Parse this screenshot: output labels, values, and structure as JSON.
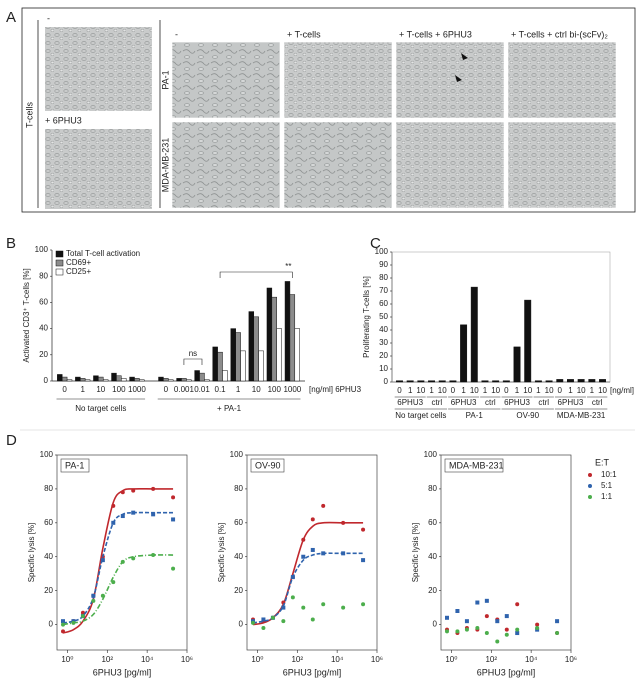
{
  "panel_letters": [
    "A",
    "B",
    "C",
    "D"
  ],
  "panel_a": {
    "row_group": "T-cells",
    "left_top": "-",
    "left_bottom": "+ 6PHU3",
    "columns": [
      "-",
      "+ T-cells",
      "+ T-cells + 6PHU3",
      "+ T-cells + ctrl bi-(scFv)₂"
    ],
    "rows": [
      "PA-1",
      "MDA-MB-231"
    ]
  },
  "chart_data": [
    {
      "type": "bar",
      "y_label": "Activated CD3⁺ T-cells [%]",
      "unit_label": "[ng/ml] 6PHU3",
      "categories": [
        "0",
        "1",
        "10",
        "100",
        "1000",
        "0",
        "0.001",
        "0.01",
        "0.1",
        "1",
        "10",
        "100",
        "1000"
      ],
      "groups": [
        {
          "name": "No target cells"
        },
        {
          "name": "+ PA-1"
        }
      ],
      "series": [
        {
          "name": "Total T-cell activation",
          "color": "#111111",
          "values": [
            5,
            3,
            4,
            6,
            3,
            3,
            2,
            8,
            26,
            40,
            53,
            71,
            76
          ]
        },
        {
          "name": "CD69+",
          "color": "#8c8c8c",
          "values": [
            3,
            2,
            3,
            4,
            2,
            2,
            2,
            6,
            22,
            37,
            49,
            64,
            66
          ]
        },
        {
          "name": "CD25+",
          "color": "#ffffff",
          "values": [
            1,
            1,
            1,
            2,
            1,
            1,
            1,
            1,
            8,
            23,
            23,
            40,
            40
          ]
        }
      ],
      "annotations": [
        "ns",
        "**"
      ],
      "ylim": [
        0,
        100
      ],
      "yticks": [
        0,
        20,
        40,
        60,
        80,
        100
      ],
      "legend": "top-left"
    },
    {
      "type": "bar",
      "y_label": "Proliferating T-cells [%]",
      "unit_label": "[ng/ml]",
      "color": "#111111",
      "categories": [
        "0",
        "1",
        "10",
        "1",
        "10",
        "0",
        "1",
        "10",
        "1",
        "10",
        "0",
        "1",
        "10",
        "1",
        "10",
        "0",
        "1",
        "10",
        "1",
        "10"
      ],
      "values": [
        1,
        1,
        1,
        1,
        1,
        1,
        44,
        73,
        1,
        1,
        1,
        27,
        63,
        1,
        1,
        2,
        2,
        2,
        2,
        2
      ],
      "groups": [
        {
          "name": "No target cells",
          "treatments": [
            "6PHU3",
            "ctrl"
          ]
        },
        {
          "name": "PA-1",
          "treatments": [
            "6PHU3",
            "ctrl"
          ]
        },
        {
          "name": "OV-90",
          "treatments": [
            "6PHU3",
            "ctrl"
          ]
        },
        {
          "name": "MDA-MB-231",
          "treatments": [
            "6PHU3",
            "ctrl"
          ]
        }
      ],
      "ylim": [
        0,
        100
      ],
      "yticks": [
        0,
        10,
        20,
        30,
        40,
        50,
        60,
        70,
        80,
        90,
        100
      ]
    },
    {
      "type": "scatter",
      "title": "PA-1",
      "x_label": "6PHU3 [pg/ml]",
      "y_label": "Specific lysis [%]",
      "log_x": true,
      "x": [
        0.6,
        2,
        6,
        20,
        60,
        200,
        600,
        2000,
        20000,
        200000
      ],
      "series": [
        {
          "color": "#c0282d",
          "marker": "circle",
          "line_style": "solid",
          "values": [
            -4,
            2,
            7,
            17,
            40,
            70,
            78,
            79,
            80,
            75
          ],
          "fit": [
            -5,
            -3,
            2,
            15,
            45,
            72,
            79,
            80,
            80,
            80
          ]
        },
        {
          "color": "#2f63ad",
          "marker": "square",
          "line_style": "dashed",
          "values": [
            2,
            2,
            5,
            17,
            38,
            60,
            64,
            66,
            65,
            62
          ],
          "fit": [
            1,
            2,
            5,
            16,
            40,
            60,
            65,
            66,
            66,
            66
          ]
        },
        {
          "color": "#4cae4c",
          "marker": "circle",
          "line_style": "dashdot",
          "values": [
            0,
            1,
            5,
            14,
            17,
            25,
            37,
            39,
            41,
            33
          ],
          "fit": [
            0,
            1,
            2,
            6,
            15,
            28,
            37,
            40,
            41,
            41
          ]
        }
      ],
      "xlim": [
        0.3,
        1000000
      ],
      "xticks": [
        {
          "value": 1,
          "label": "10⁰"
        },
        {
          "value": 100,
          "label": "10²"
        },
        {
          "value": 10000,
          "label": "10⁴"
        },
        {
          "value": 1000000,
          "label": "10⁶"
        }
      ],
      "ylim": [
        -15,
        100
      ],
      "yticks": [
        0,
        20,
        40,
        60,
        80,
        100
      ]
    },
    {
      "type": "scatter",
      "title": "OV-90",
      "x_label": "6PHU3 [pg/ml]",
      "y_label": "Specific lysis [%]",
      "log_x": true,
      "x": [
        0.6,
        2,
        6,
        20,
        60,
        200,
        600,
        2000,
        20000,
        200000
      ],
      "series": [
        {
          "color": "#c0282d",
          "marker": "circle",
          "line_style": "solid",
          "values": [
            3,
            2,
            4,
            13,
            28,
            50,
            62,
            70,
            60,
            56
          ],
          "fit": [
            0,
            1,
            4,
            12,
            30,
            50,
            58,
            60,
            60,
            60
          ]
        },
        {
          "color": "#2f63ad",
          "marker": "square",
          "line_style": "dashed",
          "values": [
            2,
            3,
            4,
            10,
            28,
            40,
            44,
            42,
            42,
            38
          ],
          "fit": [
            1,
            2,
            4,
            11,
            28,
            38,
            41,
            42,
            42,
            42
          ]
        },
        {
          "color": "#4cae4c",
          "marker": "circle",
          "line_style": "dashdot",
          "values": [
            1,
            -2,
            4,
            2,
            16,
            10,
            3,
            12,
            10,
            12
          ]
        }
      ],
      "xlim": [
        0.3,
        1000000
      ],
      "xticks": [
        {
          "value": 1,
          "label": "10⁰"
        },
        {
          "value": 100,
          "label": "10²"
        },
        {
          "value": 10000,
          "label": "10⁴"
        },
        {
          "value": 1000000,
          "label": "10⁶"
        }
      ],
      "ylim": [
        -15,
        100
      ],
      "yticks": [
        0,
        20,
        40,
        60,
        80,
        100
      ]
    },
    {
      "type": "scatter",
      "title": "MDA-MB-231",
      "x_label": "6PHU3 [pg/ml]",
      "y_label": "Specific lysis [%]",
      "log_x": true,
      "x": [
        0.6,
        2,
        6,
        20,
        60,
        200,
        600,
        2000,
        20000,
        200000
      ],
      "legend_title": "E:T",
      "legend": "outside-right",
      "series": [
        {
          "name": "10:1",
          "color": "#c0282d",
          "marker": "circle",
          "values": [
            -3,
            -5,
            -2,
            -3,
            5,
            3,
            -3,
            12,
            0,
            -5
          ]
        },
        {
          "name": "5:1",
          "color": "#2f63ad",
          "marker": "square",
          "values": [
            4,
            8,
            2,
            13,
            14,
            2,
            5,
            -5,
            -3,
            2
          ]
        },
        {
          "name": "1:1",
          "color": "#4cae4c",
          "marker": "circle",
          "values": [
            -4,
            -4,
            -3,
            -2,
            -5,
            -10,
            -6,
            -3,
            -2,
            -5
          ]
        }
      ],
      "xlim": [
        0.3,
        1000000
      ],
      "xticks": [
        {
          "value": 1,
          "label": "10⁰"
        },
        {
          "value": 100,
          "label": "10²"
        },
        {
          "value": 10000,
          "label": "10⁴"
        },
        {
          "value": 1000000,
          "label": "10⁶"
        }
      ],
      "ylim": [
        -15,
        100
      ],
      "yticks": [
        0,
        20,
        40,
        60,
        80,
        100
      ]
    }
  ]
}
